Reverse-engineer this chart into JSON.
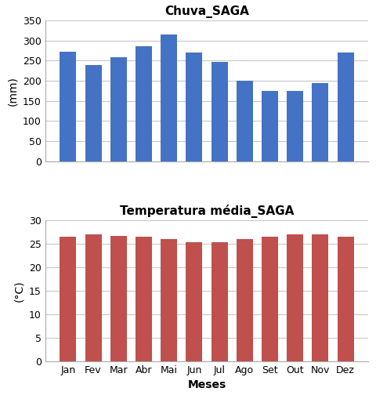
{
  "months": [
    "Jan",
    "Fev",
    "Mar",
    "Abr",
    "Mai",
    "Jun",
    "Jul",
    "Ago",
    "Set",
    "Out",
    "Nov",
    "Dez"
  ],
  "rain_values": [
    272,
    238,
    258,
    285,
    315,
    270,
    247,
    200,
    175,
    175,
    195,
    270
  ],
  "rain_color": "#4472C4",
  "rain_title": "Chuva_SAGA",
  "rain_ylabel": "(mm)",
  "rain_ylim": [
    0,
    350
  ],
  "rain_yticks": [
    0,
    50,
    100,
    150,
    200,
    250,
    300,
    350
  ],
  "temp_values": [
    26.5,
    27.0,
    26.7,
    26.5,
    26.0,
    25.3,
    25.3,
    26.0,
    26.5,
    27.0,
    27.0,
    26.5
  ],
  "temp_color": "#C0504D",
  "temp_title": "Temperatura média_SAGA",
  "temp_ylabel": "(°C)",
  "temp_ylim": [
    0,
    30
  ],
  "temp_yticks": [
    0,
    5,
    10,
    15,
    20,
    25,
    30
  ],
  "xlabel": "Meses",
  "background_color": "#ffffff",
  "grid_color": "#c8c8c8",
  "title_fontsize": 11,
  "label_fontsize": 10,
  "tick_fontsize": 9
}
